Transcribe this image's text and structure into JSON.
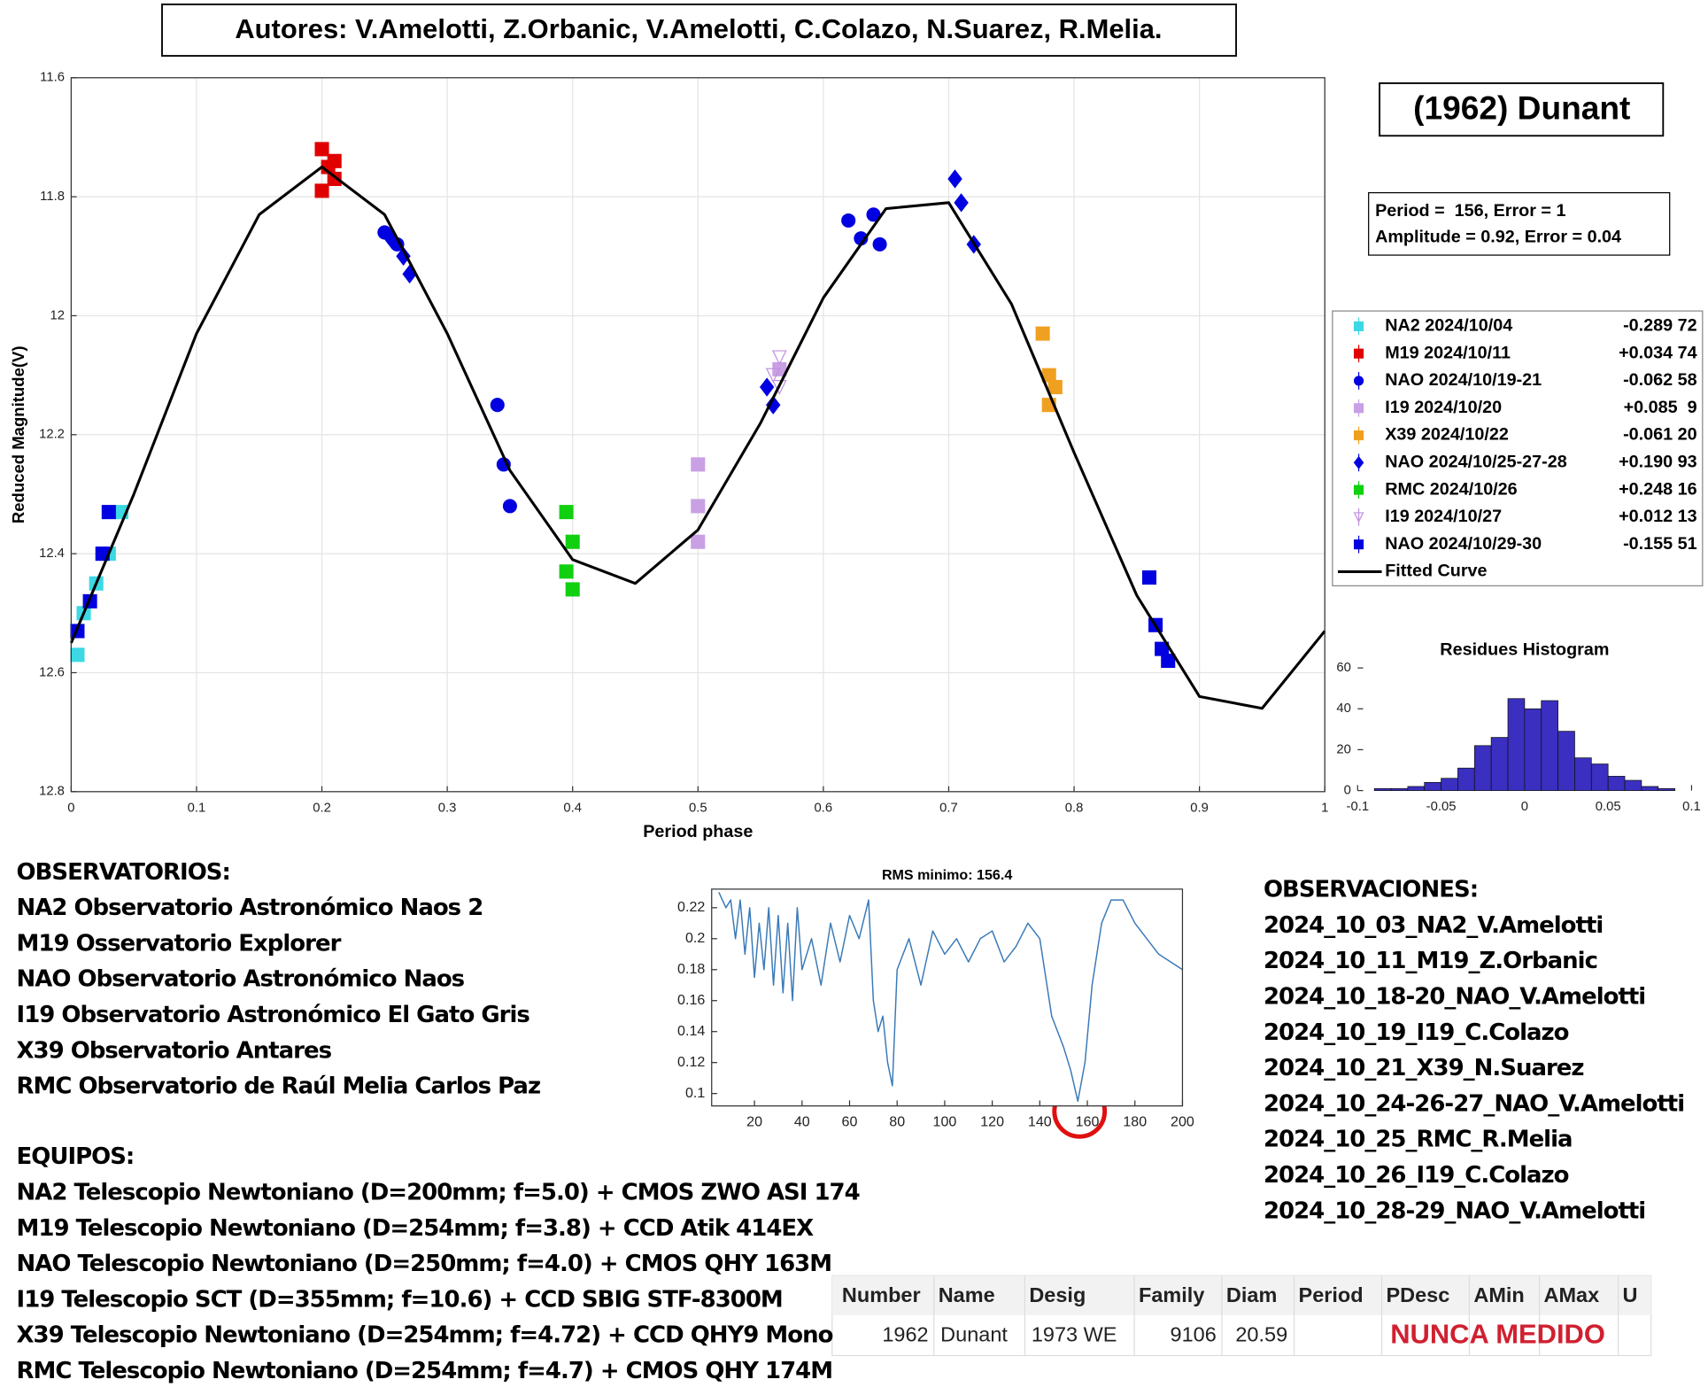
{
  "header": {
    "authors": "Autores: V.Amelotti, Z.Orbanic, V.Amelotti, C.Colazo, N.Suarez, R.Melia.",
    "object": "(1962) Dunant",
    "fit": [
      "Period =  156, Error = 1",
      "Amplitude = 0.92, Error = 0.04"
    ]
  },
  "chart_data": [
    {
      "type": "scatter",
      "xlabel": "Period phase",
      "ylabel": "Reduced Magnitude(V)",
      "xlim": [
        0,
        1
      ],
      "xticks": [
        0,
        0.1,
        0.2,
        0.3,
        0.4,
        0.5,
        0.6,
        0.7,
        0.8,
        0.9,
        1
      ],
      "ylim": [
        11.6,
        12.8
      ],
      "yticks": [
        11.6,
        11.8,
        12,
        12.2,
        12.4,
        12.6,
        12.8
      ],
      "y_reversed": true,
      "grid": true,
      "series": [
        {
          "name": "NA2 2024/10/04",
          "offset": "-0.289 72",
          "color": "#3cd8e4",
          "marker": "square",
          "x": [
            0.005,
            0.01,
            0.02,
            0.03,
            0.04
          ],
          "values": [
            12.57,
            12.5,
            12.45,
            12.4,
            12.33
          ]
        },
        {
          "name": "M19 2024/10/11",
          "offset": "+0.034 74",
          "color": "#e00000",
          "marker": "square",
          "x": [
            0.2,
            0.205,
            0.21,
            0.2,
            0.21
          ],
          "values": [
            11.72,
            11.75,
            11.77,
            11.79,
            11.74
          ]
        },
        {
          "name": "NAO 2024/10/19-21",
          "offset": "-0.062 58",
          "color": "#0000e0",
          "marker": "circle",
          "x": [
            0.25,
            0.26,
            0.34,
            0.345,
            0.35,
            0.62,
            0.63,
            0.64,
            0.645
          ],
          "values": [
            11.86,
            11.88,
            12.15,
            12.25,
            12.32,
            11.84,
            11.87,
            11.83,
            11.88
          ]
        },
        {
          "name": "I19 2024/10/20",
          "offset": "+0.085  9",
          "color": "#c9a0e4",
          "marker": "square",
          "x": [
            0.5,
            0.5,
            0.5,
            0.565
          ],
          "values": [
            12.25,
            12.32,
            12.38,
            12.09
          ]
        },
        {
          "name": "X39 2024/10/22",
          "offset": "-0.061 20",
          "color": "#f0a020",
          "marker": "square",
          "x": [
            0.775,
            0.78,
            0.78,
            0.785
          ],
          "values": [
            12.03,
            12.1,
            12.15,
            12.12
          ]
        },
        {
          "name": "NAO 2024/10/25-27-28",
          "offset": "+0.190 93",
          "color": "#0000e0",
          "marker": "diamond",
          "x": [
            0.255,
            0.265,
            0.27,
            0.56,
            0.555,
            0.705,
            0.71,
            0.72
          ],
          "values": [
            11.87,
            11.9,
            11.93,
            12.15,
            12.12,
            11.77,
            11.81,
            11.88
          ]
        },
        {
          "name": "RMC 2024/10/26",
          "offset": "+0.248 16",
          "color": "#10d010",
          "marker": "square",
          "x": [
            0.395,
            0.4,
            0.395,
            0.4
          ],
          "values": [
            12.33,
            12.38,
            12.43,
            12.46
          ]
        },
        {
          "name": "I19 2024/10/27",
          "offset": "+0.012 13",
          "color": "#c090e0",
          "marker": "triangle-down",
          "x": [
            0.56,
            0.565,
            0.565
          ],
          "values": [
            12.1,
            12.07,
            12.12
          ]
        },
        {
          "name": "NAO 2024/10/29-30",
          "offset": "-0.155 51",
          "color": "#0000e0",
          "marker": "square",
          "x": [
            0.005,
            0.015,
            0.025,
            0.03,
            0.86,
            0.865,
            0.87,
            0.875
          ],
          "values": [
            12.53,
            12.48,
            12.4,
            12.33,
            12.44,
            12.52,
            12.56,
            12.58
          ]
        }
      ],
      "fit": {
        "name": "Fitted Curve",
        "color": "#000000",
        "x": [
          0,
          0.05,
          0.1,
          0.15,
          0.2,
          0.25,
          0.3,
          0.35,
          0.4,
          0.45,
          0.5,
          0.55,
          0.6,
          0.65,
          0.7,
          0.75,
          0.8,
          0.85,
          0.9,
          0.95,
          1
        ],
        "values": [
          12.55,
          12.3,
          12.03,
          11.83,
          11.75,
          11.83,
          12.03,
          12.26,
          12.41,
          12.45,
          12.36,
          12.18,
          11.97,
          11.82,
          11.81,
          11.98,
          12.23,
          12.47,
          12.64,
          12.66,
          12.53
        ]
      }
    },
    {
      "type": "histogram",
      "title": "Residues Histogram",
      "color": "#3a2fc0",
      "bins": [
        -0.1,
        -0.09,
        -0.08,
        -0.07,
        -0.06,
        -0.05,
        -0.04,
        -0.03,
        -0.02,
        -0.01,
        0,
        0.01,
        0.02,
        0.03,
        0.04,
        0.05,
        0.06,
        0.07,
        0.08,
        0.09,
        0.1
      ],
      "counts": [
        0,
        1,
        1,
        2,
        4,
        6,
        11,
        22,
        26,
        45,
        40,
        44,
        29,
        16,
        13,
        7,
        5,
        2,
        1,
        0
      ],
      "xlim": [
        -0.1,
        0.1
      ],
      "xticks": [
        -0.1,
        -0.05,
        0,
        0.05,
        0.1
      ],
      "ylim": [
        0,
        60
      ],
      "yticks": [
        0,
        20,
        40,
        60
      ]
    },
    {
      "type": "line",
      "title": "RMS minimo: 156.4",
      "color": "#3a7ab8",
      "x": [
        5,
        8,
        10,
        12,
        14,
        16,
        18,
        20,
        22,
        24,
        26,
        28,
        30,
        32,
        34,
        36,
        38,
        40,
        44,
        48,
        52,
        56,
        60,
        64,
        68,
        70,
        72,
        74,
        76,
        78,
        80,
        85,
        90,
        95,
        100,
        105,
        110,
        115,
        120,
        125,
        130,
        135,
        140,
        145,
        150,
        153,
        156,
        159,
        162,
        166,
        170,
        175,
        180,
        185,
        190,
        195,
        200
      ],
      "values": [
        0.23,
        0.22,
        0.225,
        0.2,
        0.225,
        0.19,
        0.22,
        0.175,
        0.21,
        0.18,
        0.22,
        0.17,
        0.215,
        0.165,
        0.21,
        0.16,
        0.22,
        0.18,
        0.2,
        0.17,
        0.21,
        0.185,
        0.215,
        0.2,
        0.225,
        0.16,
        0.14,
        0.15,
        0.12,
        0.105,
        0.18,
        0.2,
        0.17,
        0.205,
        0.19,
        0.2,
        0.185,
        0.2,
        0.205,
        0.185,
        0.195,
        0.21,
        0.2,
        0.15,
        0.13,
        0.115,
        0.095,
        0.12,
        0.17,
        0.21,
        0.225,
        0.225,
        0.21,
        0.2,
        0.19,
        0.185,
        0.18
      ],
      "xlim": [
        2,
        200
      ],
      "xticks": [
        20,
        40,
        60,
        80,
        100,
        120,
        140,
        160,
        180,
        200
      ],
      "ylim": [
        0.092,
        0.232
      ],
      "yticks": [
        0.1,
        0.12,
        0.14,
        0.16,
        0.18,
        0.2,
        0.22
      ]
    }
  ],
  "observatorios": {
    "title": "OBSERVATORIOS:",
    "items": [
      "NA2 Observatorio Astronómico Naos 2",
      "M19 Osservatorio Explorer",
      "NAO Observatorio Astronómico Naos",
      "I19 Observatorio Astronómico El Gato Gris",
      "X39 Observatorio Antares",
      "RMC Observatorio de Raúl Melia Carlos Paz"
    ]
  },
  "equipos": {
    "title": "EQUIPOS:",
    "items": [
      "NA2 Telescopio Newtoniano (D=200mm; f=5.0) + CMOS ZWO ASI 174",
      "M19 Telescopio Newtoniano (D=254mm; f=3.8) + CCD Atik 414EX",
      "NAO Telescopio Newtoniano (D=250mm; f=4.0) + CMOS QHY 163M",
      "I19 Telescopio SCT (D=355mm; f=10.6) + CCD SBIG STF-8300M",
      "X39 Telescopio Newtoniano (D=254mm; f=4.72) + CCD QHY9 Mono",
      "RMC Telescopio Newtoniano (D=254mm; f=4.7) + CMOS QHY 174M"
    ]
  },
  "observaciones": {
    "title": "OBSERVACIONES:",
    "items": [
      "2024_10_03_NA2_V.Amelotti",
      "2024_10_11_M19_Z.Orbanic",
      "2024_10_18-20_NAO_V.Amelotti",
      "2024_10_19_I19_C.Colazo",
      "2024_10_21_X39_N.Suarez",
      "2024_10_24-26-27_NAO_V.Amelotti",
      "2024_10_25_RMC_R.Melia",
      "2024_10_26_I19_C.Colazo",
      "2024_10_28-29_NAO_V.Amelotti"
    ]
  },
  "table": {
    "columns": [
      "Number",
      "Name",
      "Desig",
      "Family",
      "Diam",
      "Period",
      "PDesc",
      "AMin",
      "AMax",
      "U"
    ],
    "row": [
      "1962",
      "Dunant",
      "1973 WE",
      "9106",
      "20.59"
    ],
    "note": "NUNCA MEDIDO"
  }
}
